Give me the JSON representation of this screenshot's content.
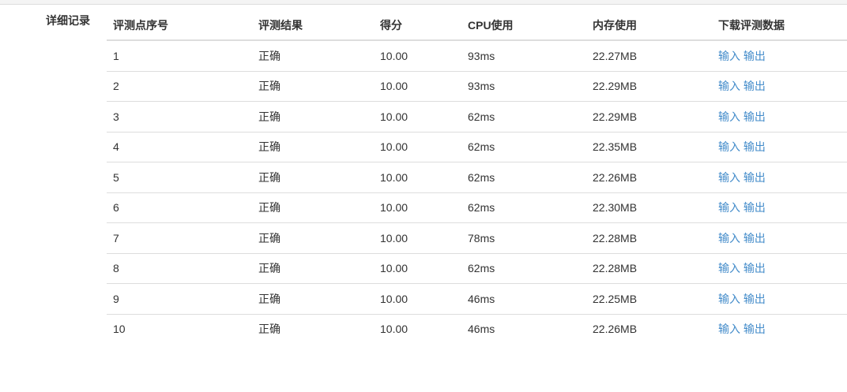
{
  "section_label": "详细记录",
  "colors": {
    "link": "#428bca",
    "text": "#333333",
    "border": "#dddddd"
  },
  "table": {
    "headers": [
      "评测点序号",
      "评测结果",
      "得分",
      "CPU使用",
      "内存使用",
      "下载评测数据"
    ],
    "rows": [
      {
        "id": "1",
        "result": "正确",
        "score": "10.00",
        "cpu": "93ms",
        "memory": "22.27MB",
        "input": "输入",
        "output": "输出"
      },
      {
        "id": "2",
        "result": "正确",
        "score": "10.00",
        "cpu": "93ms",
        "memory": "22.29MB",
        "input": "输入",
        "output": "输出"
      },
      {
        "id": "3",
        "result": "正确",
        "score": "10.00",
        "cpu": "62ms",
        "memory": "22.29MB",
        "input": "输入",
        "output": "输出"
      },
      {
        "id": "4",
        "result": "正确",
        "score": "10.00",
        "cpu": "62ms",
        "memory": "22.35MB",
        "input": "输入",
        "output": "输出"
      },
      {
        "id": "5",
        "result": "正确",
        "score": "10.00",
        "cpu": "62ms",
        "memory": "22.26MB",
        "input": "输入",
        "output": "输出"
      },
      {
        "id": "6",
        "result": "正确",
        "score": "10.00",
        "cpu": "62ms",
        "memory": "22.30MB",
        "input": "输入",
        "output": "输出"
      },
      {
        "id": "7",
        "result": "正确",
        "score": "10.00",
        "cpu": "78ms",
        "memory": "22.28MB",
        "input": "输入",
        "output": "输出"
      },
      {
        "id": "8",
        "result": "正确",
        "score": "10.00",
        "cpu": "62ms",
        "memory": "22.28MB",
        "input": "输入",
        "output": "输出"
      },
      {
        "id": "9",
        "result": "正确",
        "score": "10.00",
        "cpu": "46ms",
        "memory": "22.25MB",
        "input": "输入",
        "output": "输出"
      },
      {
        "id": "10",
        "result": "正确",
        "score": "10.00",
        "cpu": "46ms",
        "memory": "22.26MB",
        "input": "输入",
        "output": "输出"
      }
    ]
  }
}
